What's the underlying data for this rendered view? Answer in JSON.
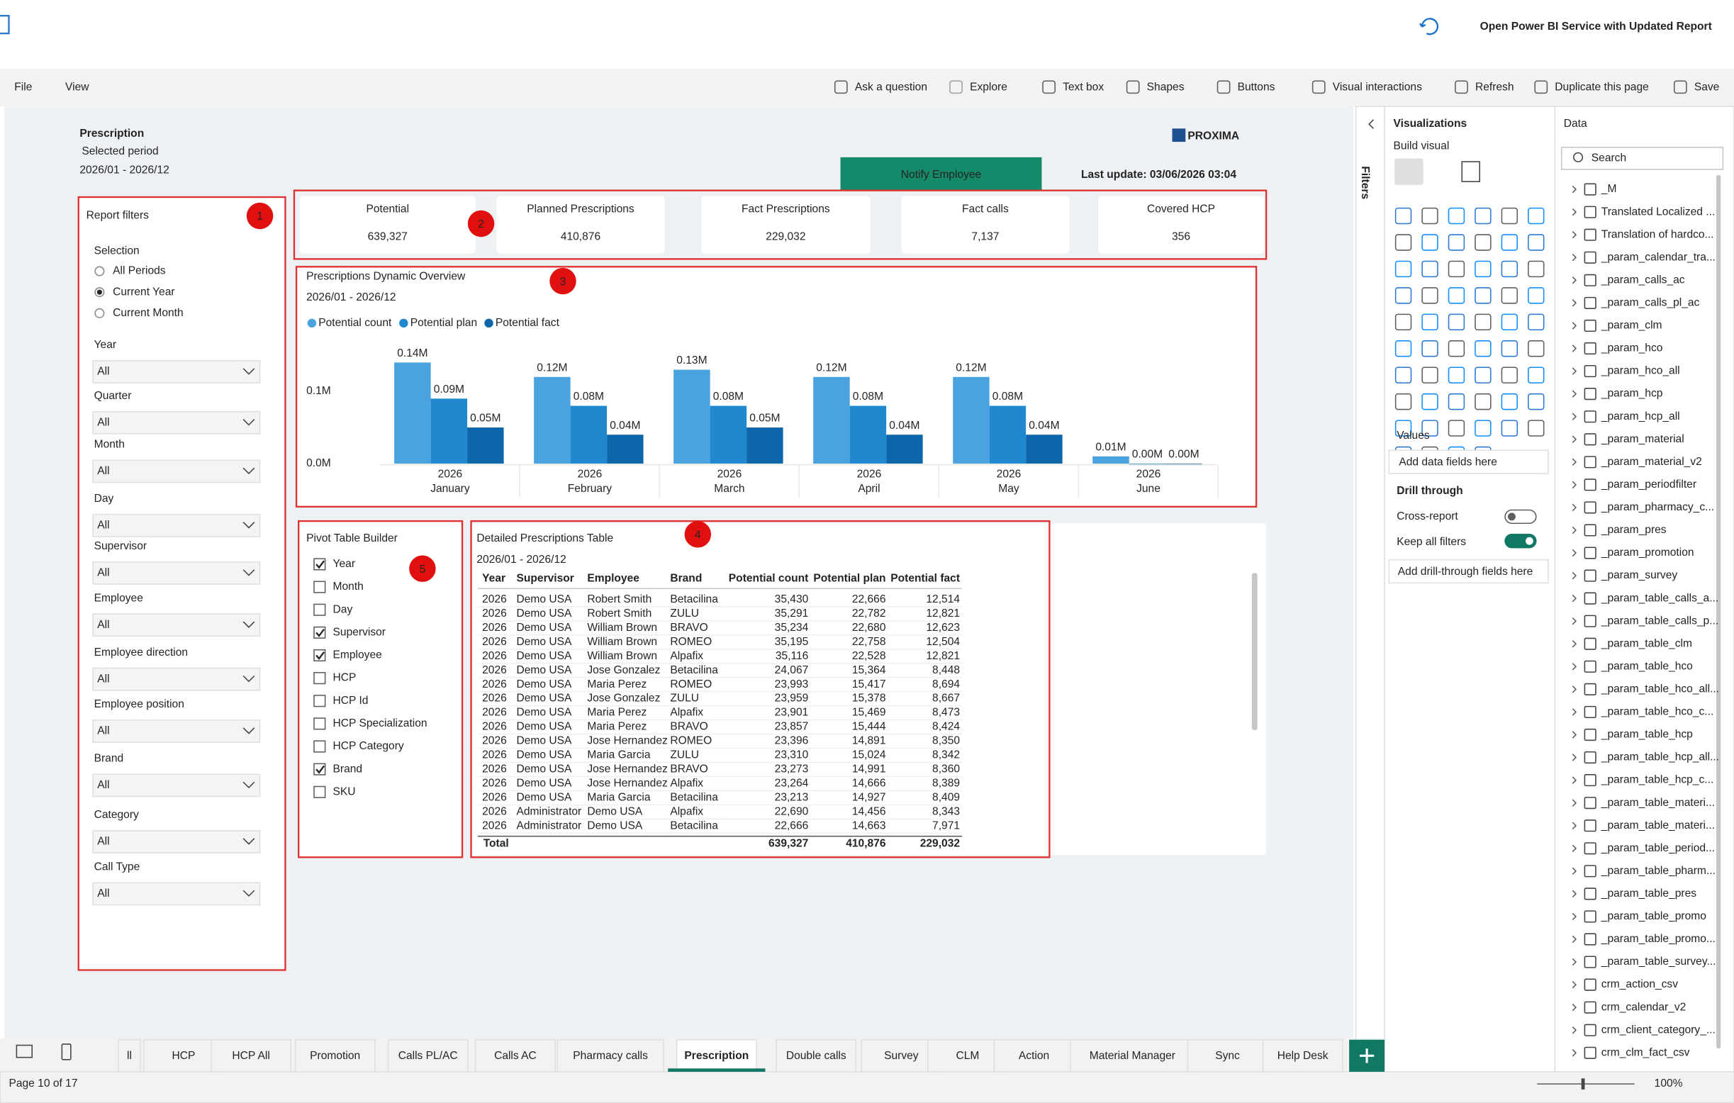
{
  "topbar": {
    "open_service": "Open Power BI Service with Updated Report"
  },
  "menu": [
    "File",
    "View"
  ],
  "toolbar": [
    "Ask a question",
    "Explore",
    "Text box",
    "Shapes",
    "Buttons",
    "Visual interactions",
    "Refresh",
    "Duplicate this page",
    "Save"
  ],
  "report": {
    "title": "Prescription",
    "period_label": "Selected period",
    "period": "2026/01 - 2026/12",
    "notify": "Notify Employee",
    "last_update": "Last update: 03/06/2026 03:04",
    "logo": "PROXIMA"
  },
  "filters": {
    "title": "Report filters",
    "selection_label": "Selection",
    "options": [
      "All Periods",
      "Current Year",
      "Current Month"
    ],
    "selected": 1,
    "dropdowns": [
      {
        "label": "Year",
        "value": "All"
      },
      {
        "label": "Quarter",
        "value": "All"
      },
      {
        "label": "Month",
        "value": "All"
      },
      {
        "label": "Day",
        "value": "All"
      },
      {
        "label": "Supervisor",
        "value": "All"
      },
      {
        "label": "Employee",
        "value": "All"
      },
      {
        "label": "Employee direction",
        "value": "All"
      },
      {
        "label": "Employee position",
        "value": "All"
      },
      {
        "label": "Brand",
        "value": "All"
      },
      {
        "label": "Category",
        "value": "All"
      },
      {
        "label": "Call Type",
        "value": "All"
      }
    ]
  },
  "kpis": [
    {
      "label": "Potential",
      "value": "639,327"
    },
    {
      "label": "Planned Prescriptions",
      "value": "410,876"
    },
    {
      "label": "Fact Prescriptions",
      "value": "229,032"
    },
    {
      "label": "Fact calls",
      "value": "7,137"
    },
    {
      "label": "Covered HCP",
      "value": "356"
    }
  ],
  "chart": {
    "type": "bar",
    "title": "Prescriptions Dynamic Overview",
    "subtitle": "2026/01 - 2026/12",
    "categories": [
      "January",
      "February",
      "March",
      "April",
      "May",
      "June"
    ],
    "category_years": [
      "2026",
      "2026",
      "2026",
      "2026",
      "2026",
      "2026"
    ],
    "series": [
      {
        "name": "Potential count",
        "color": "#4aa3df",
        "values": [
          0.14,
          0.12,
          0.13,
          0.12,
          0.12,
          0.01
        ],
        "value_labels": [
          "0.14M",
          "0.12M",
          "0.13M",
          "0.12M",
          "0.12M",
          "0.01M"
        ]
      },
      {
        "name": "Potential plan",
        "color": "#1f88cf",
        "values": [
          0.09,
          0.08,
          0.08,
          0.08,
          0.08,
          0.0
        ],
        "value_labels": [
          "0.09M",
          "0.08M",
          "0.08M",
          "0.08M",
          "0.08M",
          "0.00M"
        ]
      },
      {
        "name": "Potential fact",
        "color": "#0e66aa",
        "values": [
          0.05,
          0.04,
          0.05,
          0.04,
          0.04,
          0.0
        ],
        "value_labels": [
          "0.05M",
          "0.04M",
          "0.05M",
          "0.04M",
          "0.04M",
          "0.00M"
        ]
      }
    ],
    "ylim": [
      0,
      0.17
    ],
    "yticks": [
      {
        "value": 0,
        "label": "0.0M"
      },
      {
        "value": 0.1,
        "label": "0.1M"
      }
    ]
  },
  "pivot": {
    "title": "Pivot Table Builder",
    "items": [
      {
        "label": "Year",
        "checked": true
      },
      {
        "label": "Month",
        "checked": false
      },
      {
        "label": "Day",
        "checked": false
      },
      {
        "label": "Supervisor",
        "checked": true
      },
      {
        "label": "Employee",
        "checked": true
      },
      {
        "label": "HCP",
        "checked": false
      },
      {
        "label": "HCP Id",
        "checked": false
      },
      {
        "label": "HCP Specialization",
        "checked": false
      },
      {
        "label": "HCP Category",
        "checked": false
      },
      {
        "label": "Brand",
        "checked": true
      },
      {
        "label": "SKU",
        "checked": false
      }
    ]
  },
  "table": {
    "title": "Detailed Prescriptions Table",
    "subtitle": "2026/01 - 2026/12",
    "columns": [
      "Year",
      "Supervisor",
      "Employee",
      "Brand",
      "Potential count",
      "Potential plan",
      "Potential fact"
    ],
    "rows": [
      [
        "2026",
        "Demo USA",
        "Robert Smith",
        "Betacilina",
        "35,430",
        "22,666",
        "12,514"
      ],
      [
        "2026",
        "Demo USA",
        "Robert Smith",
        "ZULU",
        "35,291",
        "22,782",
        "12,821"
      ],
      [
        "2026",
        "Demo USA",
        "William Brown",
        "BRAVO",
        "35,234",
        "22,680",
        "12,623"
      ],
      [
        "2026",
        "Demo USA",
        "William Brown",
        "ROMEO",
        "35,195",
        "22,758",
        "12,504"
      ],
      [
        "2026",
        "Demo USA",
        "William Brown",
        "Alpafix",
        "35,116",
        "22,528",
        "12,821"
      ],
      [
        "2026",
        "Demo USA",
        "Jose Gonzalez",
        "Betacilina",
        "24,067",
        "15,364",
        "8,448"
      ],
      [
        "2026",
        "Demo USA",
        "Maria Perez",
        "ROMEO",
        "23,993",
        "15,417",
        "8,694"
      ],
      [
        "2026",
        "Demo USA",
        "Jose Gonzalez",
        "ZULU",
        "23,959",
        "15,378",
        "8,667"
      ],
      [
        "2026",
        "Demo USA",
        "Maria Perez",
        "Alpafix",
        "23,901",
        "15,469",
        "8,473"
      ],
      [
        "2026",
        "Demo USA",
        "Maria Perez",
        "BRAVO",
        "23,857",
        "15,444",
        "8,424"
      ],
      [
        "2026",
        "Demo USA",
        "Jose Hernandez",
        "ROMEO",
        "23,396",
        "14,891",
        "8,350"
      ],
      [
        "2026",
        "Demo USA",
        "Maria Garcia",
        "ZULU",
        "23,310",
        "15,024",
        "8,342"
      ],
      [
        "2026",
        "Demo USA",
        "Jose Hernandez",
        "BRAVO",
        "23,273",
        "14,991",
        "8,360"
      ],
      [
        "2026",
        "Demo USA",
        "Jose Hernandez",
        "Alpafix",
        "23,264",
        "14,666",
        "8,389"
      ],
      [
        "2026",
        "Demo USA",
        "Maria Garcia",
        "Betacilina",
        "23,213",
        "14,927",
        "8,409"
      ],
      [
        "2026",
        "Administrator",
        "Demo USA",
        "Alpafix",
        "22,690",
        "14,456",
        "8,343"
      ],
      [
        "2026",
        "Administrator",
        "Demo USA",
        "Betacilina",
        "22,666",
        "14,663",
        "7,971"
      ]
    ],
    "total": {
      "label": "Total",
      "values": [
        "639,327",
        "410,876",
        "229,032"
      ]
    }
  },
  "filters_pane": {
    "title": "Filters"
  },
  "viz": {
    "title": "Visualizations",
    "build": "Build visual",
    "values": "Values",
    "add_fields": "Add data fields here",
    "drill": "Drill through",
    "cross_report": "Cross-report",
    "cross_report_on": false,
    "keep_filters": "Keep all filters",
    "keep_filters_on": true,
    "add_drill": "Add drill-through fields here"
  },
  "data_pane": {
    "title": "Data",
    "search": "Search",
    "items": [
      "_M",
      "Translated Localized ...",
      "Translation of hardco...",
      "_param_calendar_tra...",
      "_param_calls_ac",
      "_param_calls_pl_ac",
      "_param_clm",
      "_param_hco",
      "_param_hco_all",
      "_param_hcp",
      "_param_hcp_all",
      "_param_material",
      "_param_material_v2",
      "_param_periodfilter",
      "_param_pharmacy_c...",
      "_param_pres",
      "_param_promotion",
      "_param_survey",
      "_param_table_calls_a...",
      "_param_table_calls_p...",
      "_param_table_clm",
      "_param_table_hco",
      "_param_table_hco_all...",
      "_param_table_hco_c...",
      "_param_table_hcp",
      "_param_table_hcp_all...",
      "_param_table_hcp_c...",
      "_param_table_materi...",
      "_param_table_materi...",
      "_param_table_period...",
      "_param_table_pharm...",
      "_param_table_pres",
      "_param_table_promo",
      "_param_table_promo...",
      "_param_table_survey...",
      "crm_action_csv",
      "crm_calendar_v2",
      "crm_client_category_...",
      "crm_clm_fact_csv"
    ]
  },
  "tabs": {
    "items": [
      "ll",
      "HCP",
      "HCP All",
      "Promotion",
      "Calls PL/AC",
      "Calls AC",
      "Pharmacy calls",
      "Prescription",
      "Double calls",
      "Survey",
      "CLM",
      "Action",
      "Material Manager",
      "Sync",
      "Help Desk"
    ],
    "active": 7
  },
  "status": {
    "page": "Page 10 of 17",
    "zoom": "100%"
  },
  "annotations": [
    "1",
    "2",
    "3",
    "4",
    "5"
  ]
}
